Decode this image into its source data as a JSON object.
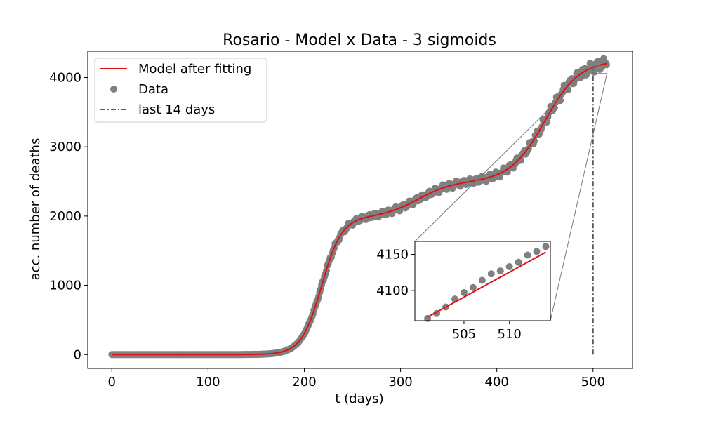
{
  "chart_data": {
    "type": "scatter",
    "title": "Rosario - Model x Data - 3 sigmoids",
    "xlabel": "t (days)",
    "ylabel": "acc. number of deaths",
    "xlim": [
      -25,
      541
    ],
    "ylim": [
      -200,
      4380
    ],
    "xticks": [
      0,
      100,
      200,
      300,
      400,
      500
    ],
    "yticks": [
      0,
      1000,
      2000,
      3000,
      4000
    ],
    "grid": false,
    "legend_position": "top-left",
    "colors": {
      "model": "#e01010",
      "data": "#808080",
      "marker": "#5a5a5a",
      "zoom": "#777777"
    },
    "model_sigmoids": [
      {
        "amplitude": 1980,
        "midpoint": 218,
        "scale": 10.5
      },
      {
        "amplitude": 520,
        "midpoint": 318,
        "scale": 18
      },
      {
        "amplitude": 1750,
        "midpoint": 450,
        "scale": 18
      }
    ],
    "series": [
      {
        "name": "Model after fitting",
        "kind": "line",
        "x_start": 0,
        "x_end": 514
      },
      {
        "name": "Data",
        "kind": "scatter",
        "x_start": 0,
        "x_end": 514
      }
    ],
    "vline": {
      "name": "last 14 days",
      "x": 500
    },
    "inset": {
      "xlim": [
        499.6,
        514.5
      ],
      "ylim": [
        4058,
        4168
      ],
      "xticks": [
        505,
        510
      ],
      "yticks": [
        4100,
        4150
      ],
      "data_points": [
        {
          "x": 501,
          "y": 4061
        },
        {
          "x": 502,
          "y": 4068
        },
        {
          "x": 503,
          "y": 4077
        },
        {
          "x": 504,
          "y": 4088
        },
        {
          "x": 505,
          "y": 4097
        },
        {
          "x": 506,
          "y": 4104
        },
        {
          "x": 507,
          "y": 4114
        },
        {
          "x": 508,
          "y": 4123
        },
        {
          "x": 509,
          "y": 4127
        },
        {
          "x": 510,
          "y": 4133
        },
        {
          "x": 511,
          "y": 4139
        },
        {
          "x": 512,
          "y": 4149
        },
        {
          "x": 513,
          "y": 4154
        },
        {
          "x": 514,
          "y": 4161
        }
      ],
      "model_points": [
        {
          "x": 501,
          "y": 4063
        },
        {
          "x": 514,
          "y": 4153
        }
      ]
    }
  }
}
